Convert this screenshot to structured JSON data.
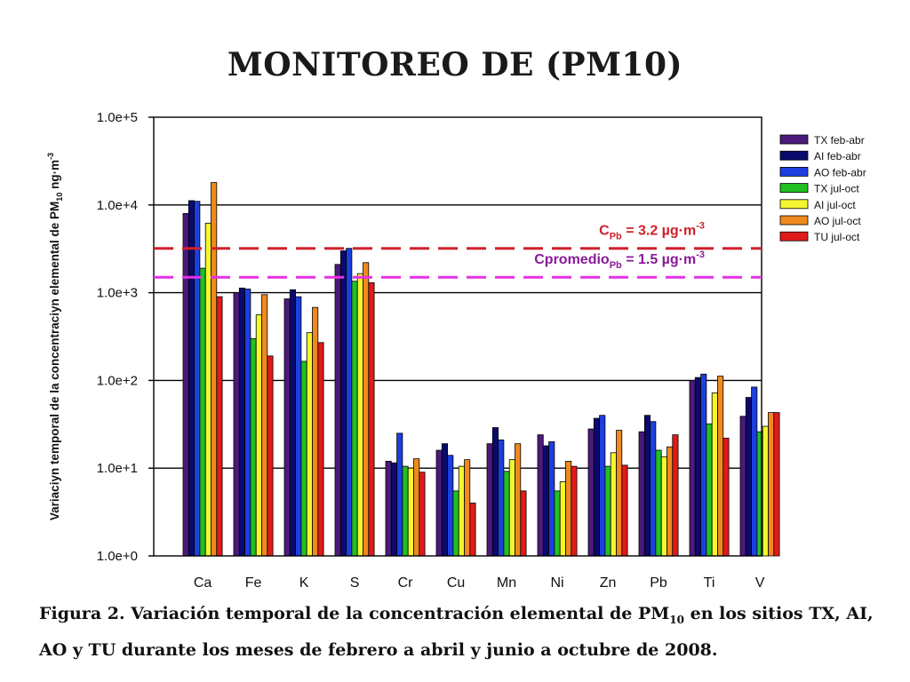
{
  "title": "MONITOREO DE (PM10)",
  "caption": {
    "part1": "Figura 2. Variación temporal de la concentración elemental de PM",
    "sub": "10",
    "part2": " en los sitios TX, AI, AO y TU durante los meses de febrero a abril y junio a octubre de 2008."
  },
  "chart_data": {
    "type": "bar",
    "scale": "log",
    "ylim": [
      1,
      100000
    ],
    "yticks": [
      "1.0e+0",
      "1.0e+1",
      "1.0e+2",
      "1.0e+3",
      "1.0e+4",
      "1.0e+5"
    ],
    "ylabel": {
      "text1": "Variaciyn temporal de la concentraciyn elemental de PM",
      "sub": "10",
      "text2": " ng·m",
      "sup": "-3"
    },
    "grid": true,
    "legend_position": "right",
    "categories": [
      "Ca",
      "Fe",
      "K",
      "S",
      "Cr",
      "Cu",
      "Mn",
      "Ni",
      "Zn",
      "Pb",
      "Ti",
      "V"
    ],
    "series": [
      {
        "name": "TX feb-abr",
        "color": "#4b1a7a",
        "values": [
          8000,
          1000,
          850,
          2100,
          12,
          16,
          19,
          24,
          28,
          26,
          100,
          39
        ]
      },
      {
        "name": "AI feb-abr",
        "color": "#0a0a6e",
        "values": [
          11200,
          1130,
          1080,
          3000,
          11.5,
          19,
          29,
          18,
          37,
          40,
          108,
          64
        ]
      },
      {
        "name": "AO feb-abr",
        "color": "#1c3fe0",
        "values": [
          11000,
          1100,
          900,
          3200,
          25,
          14,
          21,
          20,
          40,
          34,
          118,
          84
        ]
      },
      {
        "name": "TX jul-oct",
        "color": "#22c022",
        "values": [
          1900,
          300,
          165,
          1350,
          10.5,
          5.5,
          9.2,
          5.5,
          10.5,
          16,
          32,
          26
        ]
      },
      {
        "name": "AI jul-oct",
        "color": "#f5f530",
        "values": [
          6200,
          560,
          350,
          1650,
          10,
          10.5,
          12.5,
          7,
          15,
          13.5,
          72,
          30
        ]
      },
      {
        "name": "AO jul-oct",
        "color": "#f08a1e",
        "values": [
          18000,
          950,
          680,
          2200,
          12.8,
          12.5,
          19,
          12,
          27,
          17.5,
          112,
          43
        ]
      },
      {
        "name": "TU jul-oct",
        "color": "#e11a1a",
        "values": [
          900,
          190,
          270,
          1300,
          9,
          4,
          5.5,
          10.5,
          10.8,
          24,
          22,
          43
        ]
      }
    ],
    "reference_lines": [
      {
        "value": 3200,
        "color": "#d0202a",
        "label_main": "C",
        "label_sub": "Pb",
        "label_rest": " = 3.2 µg·m",
        "label_sup": "-3"
      },
      {
        "value": 1500,
        "color": "#e830e8",
        "label_main": "Cpromedio",
        "label_sub": "Pb",
        "label_rest": " = 1.5 µg·m",
        "label_sup": "-3",
        "label_color": "#8a1a9a"
      }
    ]
  }
}
